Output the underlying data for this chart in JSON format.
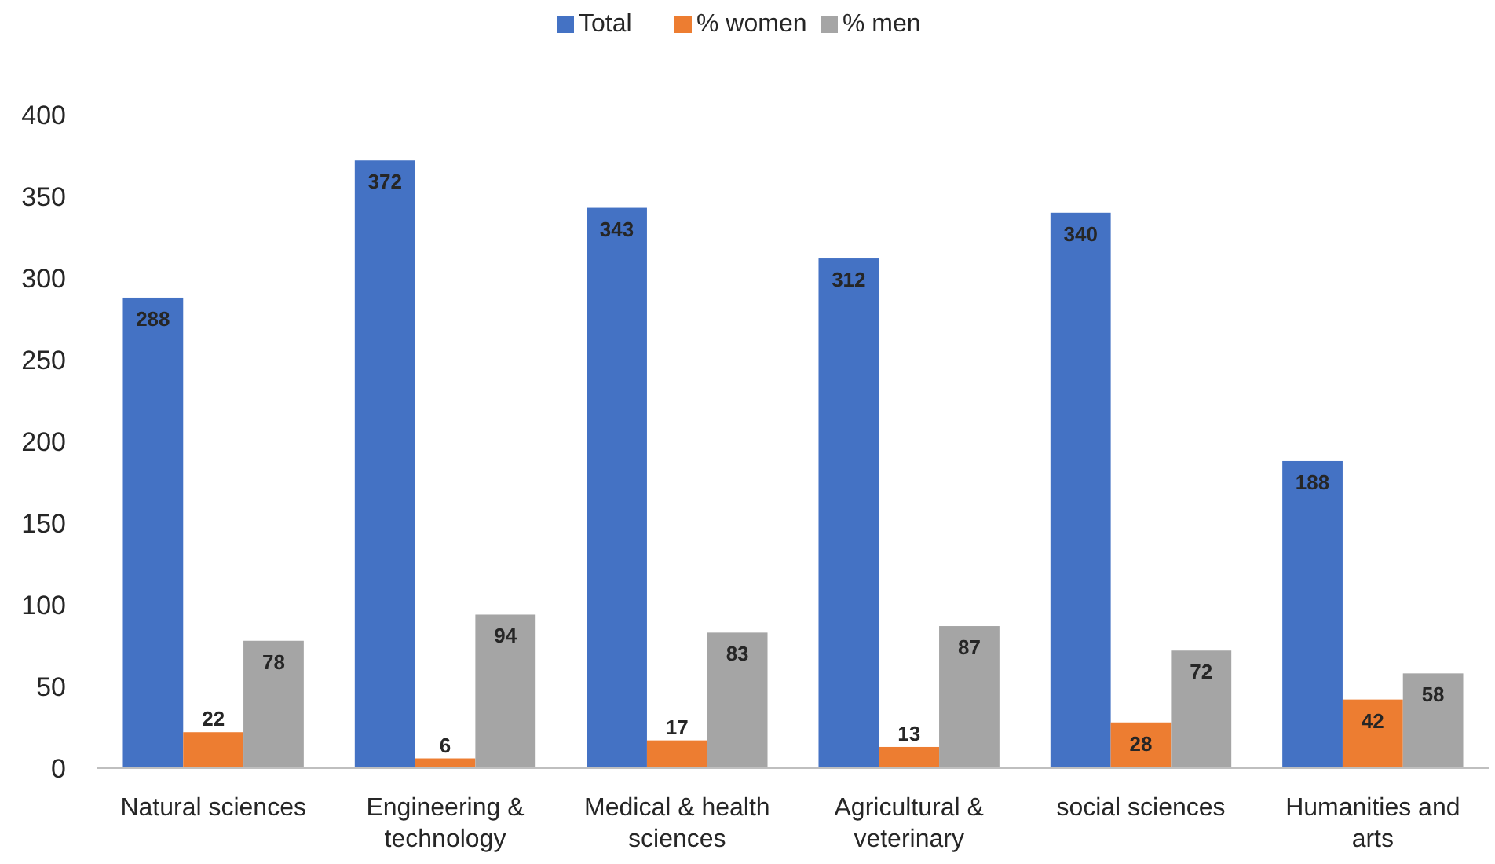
{
  "chart_data": {
    "type": "bar",
    "categories": [
      "Natural sciences",
      "Engineering & technology",
      "Medical & health sciences",
      "Agricultural & veterinary",
      "social sciences",
      "Humanities and arts"
    ],
    "series": [
      {
        "name": "Total",
        "color": "#4472c4",
        "values": [
          288,
          372,
          343,
          312,
          340,
          188
        ]
      },
      {
        "name": "% women",
        "color": "#ed7d31",
        "values": [
          22,
          6,
          17,
          13,
          28,
          42
        ]
      },
      {
        "name": "% men",
        "color": "#a5a5a5",
        "values": [
          78,
          94,
          83,
          87,
          72,
          58
        ]
      }
    ],
    "ylim": [
      0,
      400
    ],
    "yticks": [
      0,
      50,
      100,
      150,
      200,
      250,
      300,
      350,
      400
    ],
    "data_labels": true,
    "legend": "top",
    "grid": false
  }
}
